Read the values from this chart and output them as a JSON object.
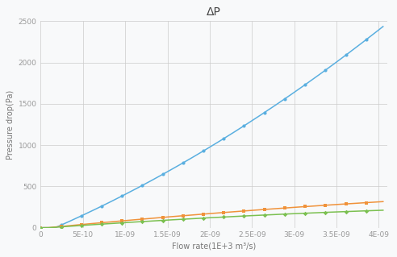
{
  "title": "ΔP",
  "xlabel": "Flow rate(1E+3 m³/s)",
  "ylabel": "Pressure drop(Pa)",
  "xlim": [
    0,
    4.1e-09
  ],
  "ylim": [
    0,
    2500
  ],
  "x_ticks": [
    0,
    5e-10,
    1e-09,
    1.5e-09,
    2e-09,
    2.5e-09,
    3e-09,
    3.5e-09,
    4e-09
  ],
  "x_tick_labels": [
    "0",
    "5E-10",
    "1E-09",
    "1.5E-09",
    "2E-09",
    "2.5E-09",
    "3E-09",
    "3.5E-09",
    "4E-09"
  ],
  "y_ticks": [
    0,
    500,
    1000,
    1500,
    2000,
    2500
  ],
  "blue_color": "#5aafe0",
  "orange_color": "#f0923a",
  "green_color": "#7bc050",
  "background_color": "#f8f9fa",
  "grid_color": "#cccccc",
  "blue_coeff_a": 1.38e+17,
  "blue_coeff_b": 0,
  "orange_coeff_a": 18500000000.0,
  "orange_coeff_b": 35,
  "green_coeff_a": 11000000000.0,
  "green_coeff_b": 18,
  "marker_xs_blue": [
    0,
    2.5e-10,
    5e-10,
    7.5e-10,
    1e-09,
    1.25e-09,
    1.5e-09,
    1.75e-09,
    2e-09,
    2.25e-09,
    2.5e-09,
    2.75e-09,
    3e-09,
    3.25e-09,
    3.5e-09,
    3.75e-09
  ],
  "marker_xs_other": [
    0,
    2.5e-10,
    5e-10,
    7.5e-10,
    1e-09,
    1.25e-09,
    1.5e-09,
    1.75e-09,
    2e-09,
    2.25e-09,
    2.5e-09,
    2.75e-09,
    3e-09,
    3.25e-09,
    3.5e-09,
    3.75e-09
  ]
}
